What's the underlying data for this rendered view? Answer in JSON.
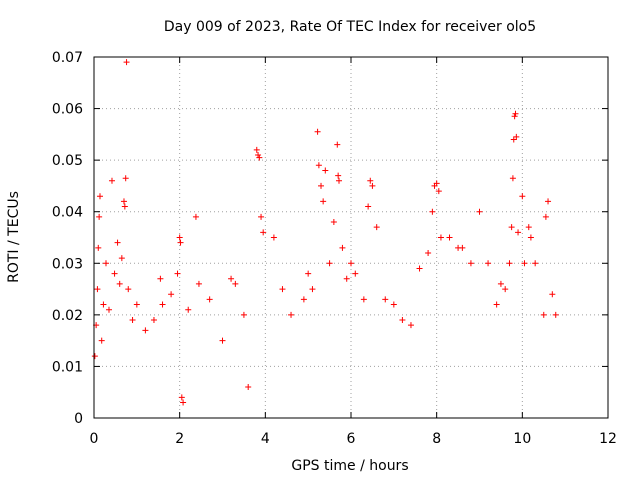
{
  "chart_data": {
    "type": "scatter",
    "title": "Day 009 of 2023, Rate Of TEC Index for receiver olo5",
    "xlabel": "GPS time / hours",
    "ylabel": "ROTI / TECUs",
    "xlim": [
      0,
      12
    ],
    "ylim": [
      0,
      0.07
    ],
    "xticks": [
      0,
      2,
      4,
      6,
      8,
      10,
      12
    ],
    "xtick_labels": [
      "0",
      "2",
      "4",
      "6",
      "8",
      "10",
      "12"
    ],
    "yticks": [
      0,
      0.01,
      0.02,
      0.03,
      0.04,
      0.05,
      0.06,
      0.07
    ],
    "ytick_labels": [
      "0",
      "0.01",
      "0.02",
      "0.03",
      "0.04",
      "0.05",
      "0.06",
      "0.07"
    ],
    "grid": true,
    "marker": "plus",
    "color": "#ff0000",
    "series": [
      {
        "name": "ROTI",
        "points": [
          [
            0.02,
            0.012
          ],
          [
            0.05,
            0.018
          ],
          [
            0.08,
            0.025
          ],
          [
            0.1,
            0.033
          ],
          [
            0.12,
            0.039
          ],
          [
            0.14,
            0.043
          ],
          [
            0.18,
            0.015
          ],
          [
            0.22,
            0.022
          ],
          [
            0.28,
            0.03
          ],
          [
            0.35,
            0.021
          ],
          [
            0.42,
            0.046
          ],
          [
            0.48,
            0.028
          ],
          [
            0.55,
            0.034
          ],
          [
            0.6,
            0.026
          ],
          [
            0.65,
            0.031
          ],
          [
            0.7,
            0.042
          ],
          [
            0.72,
            0.041
          ],
          [
            0.74,
            0.0465
          ],
          [
            0.76,
            0.069
          ],
          [
            0.8,
            0.025
          ],
          [
            0.9,
            0.019
          ],
          [
            1.0,
            0.022
          ],
          [
            1.2,
            0.017
          ],
          [
            1.4,
            0.019
          ],
          [
            1.55,
            0.027
          ],
          [
            1.6,
            0.022
          ],
          [
            1.8,
            0.024
          ],
          [
            1.95,
            0.028
          ],
          [
            2.0,
            0.035
          ],
          [
            2.02,
            0.034
          ],
          [
            2.05,
            0.004
          ],
          [
            2.08,
            0.003
          ],
          [
            2.2,
            0.021
          ],
          [
            2.38,
            0.039
          ],
          [
            2.45,
            0.026
          ],
          [
            2.7,
            0.023
          ],
          [
            3.0,
            0.015
          ],
          [
            3.2,
            0.027
          ],
          [
            3.3,
            0.026
          ],
          [
            3.5,
            0.02
          ],
          [
            3.6,
            0.006
          ],
          [
            3.8,
            0.052
          ],
          [
            3.83,
            0.051
          ],
          [
            3.86,
            0.0505
          ],
          [
            3.9,
            0.039
          ],
          [
            3.95,
            0.036
          ],
          [
            4.2,
            0.035
          ],
          [
            4.4,
            0.025
          ],
          [
            4.6,
            0.02
          ],
          [
            4.9,
            0.023
          ],
          [
            5.0,
            0.028
          ],
          [
            5.1,
            0.025
          ],
          [
            5.22,
            0.0555
          ],
          [
            5.25,
            0.049
          ],
          [
            5.3,
            0.045
          ],
          [
            5.35,
            0.042
          ],
          [
            5.4,
            0.048
          ],
          [
            5.5,
            0.03
          ],
          [
            5.6,
            0.038
          ],
          [
            5.68,
            0.053
          ],
          [
            5.7,
            0.047
          ],
          [
            5.72,
            0.046
          ],
          [
            5.8,
            0.033
          ],
          [
            5.9,
            0.027
          ],
          [
            6.0,
            0.03
          ],
          [
            6.1,
            0.028
          ],
          [
            6.3,
            0.023
          ],
          [
            6.4,
            0.041
          ],
          [
            6.45,
            0.046
          ],
          [
            6.5,
            0.045
          ],
          [
            6.6,
            0.037
          ],
          [
            6.8,
            0.023
          ],
          [
            7.0,
            0.022
          ],
          [
            7.2,
            0.019
          ],
          [
            7.4,
            0.018
          ],
          [
            7.6,
            0.029
          ],
          [
            7.8,
            0.032
          ],
          [
            7.9,
            0.04
          ],
          [
            7.95,
            0.045
          ],
          [
            8.0,
            0.0455
          ],
          [
            8.05,
            0.044
          ],
          [
            8.1,
            0.035
          ],
          [
            8.3,
            0.035
          ],
          [
            8.5,
            0.033
          ],
          [
            8.6,
            0.033
          ],
          [
            8.8,
            0.03
          ],
          [
            9.0,
            0.04
          ],
          [
            9.2,
            0.03
          ],
          [
            9.4,
            0.022
          ],
          [
            9.5,
            0.026
          ],
          [
            9.6,
            0.025
          ],
          [
            9.7,
            0.03
          ],
          [
            9.75,
            0.037
          ],
          [
            9.78,
            0.0465
          ],
          [
            9.8,
            0.054
          ],
          [
            9.82,
            0.0585
          ],
          [
            9.84,
            0.059
          ],
          [
            9.86,
            0.0545
          ],
          [
            9.9,
            0.036
          ],
          [
            10.0,
            0.043
          ],
          [
            10.05,
            0.03
          ],
          [
            10.15,
            0.037
          ],
          [
            10.2,
            0.035
          ],
          [
            10.3,
            0.03
          ],
          [
            10.5,
            0.02
          ],
          [
            10.55,
            0.039
          ],
          [
            10.6,
            0.042
          ],
          [
            10.7,
            0.024
          ],
          [
            10.78,
            0.02
          ]
        ]
      }
    ]
  }
}
